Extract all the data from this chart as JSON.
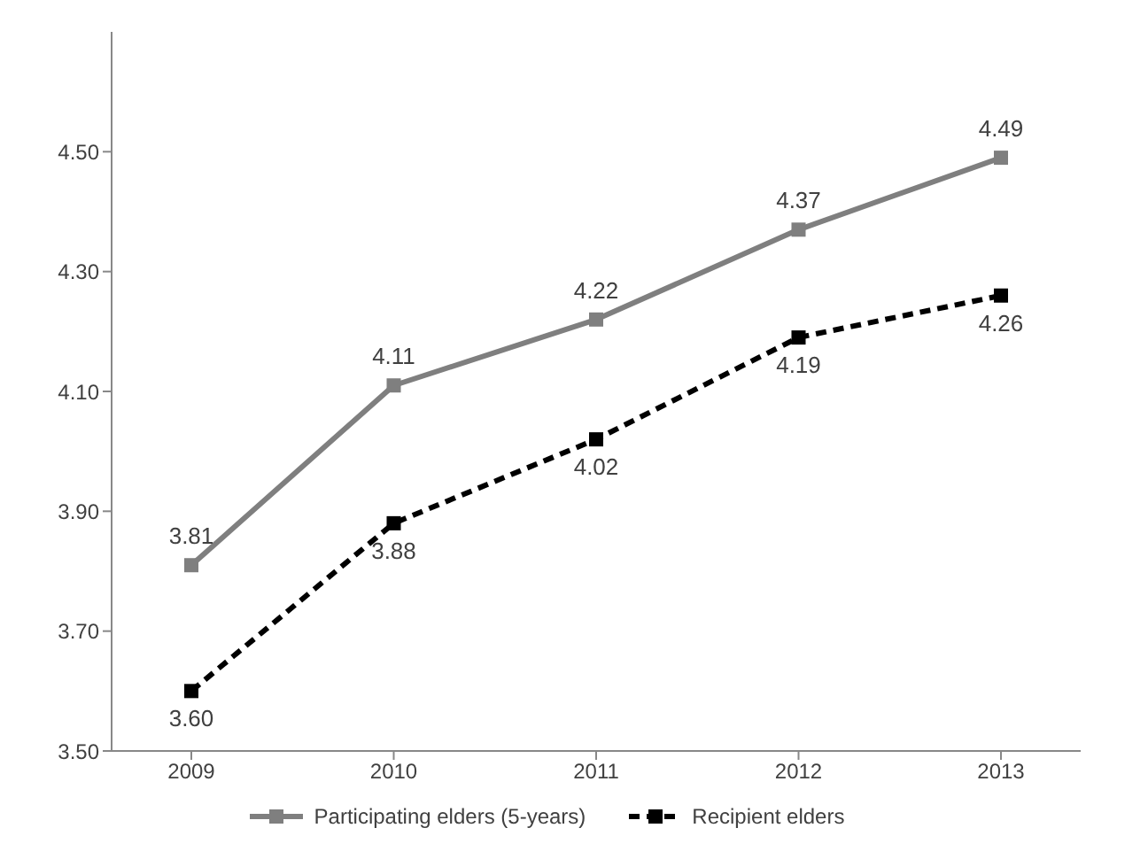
{
  "chart_data": {
    "type": "line",
    "categories": [
      "2009",
      "2010",
      "2011",
      "2012",
      "2013"
    ],
    "series": [
      {
        "name": "Participating elders (5-years)",
        "color": "#7f7f7f",
        "values": [
          3.81,
          4.11,
          4.22,
          4.37,
          4.49
        ],
        "value_labels": [
          "3.81",
          "4.11",
          "4.22",
          "4.37",
          "4.49"
        ],
        "line_style": "solid"
      },
      {
        "name": "Recipient elders",
        "color": "#000000",
        "values": [
          3.6,
          3.88,
          4.02,
          4.19,
          4.26
        ],
        "value_labels": [
          "3.60",
          "3.88",
          "4.02",
          "4.19",
          "4.26"
        ],
        "line_style": "dashed"
      }
    ],
    "ylim": [
      3.5,
      4.7
    ],
    "yticks": [
      {
        "value": 3.5,
        "label": "3.50"
      },
      {
        "value": 3.7,
        "label": "3.70"
      },
      {
        "value": 3.9,
        "label": "3.90"
      },
      {
        "value": 4.1,
        "label": "4.10"
      },
      {
        "value": 4.3,
        "label": "4.30"
      },
      {
        "value": 4.5,
        "label": "4.50"
      }
    ],
    "grid": false,
    "legend": "bottom",
    "marker": "square"
  }
}
